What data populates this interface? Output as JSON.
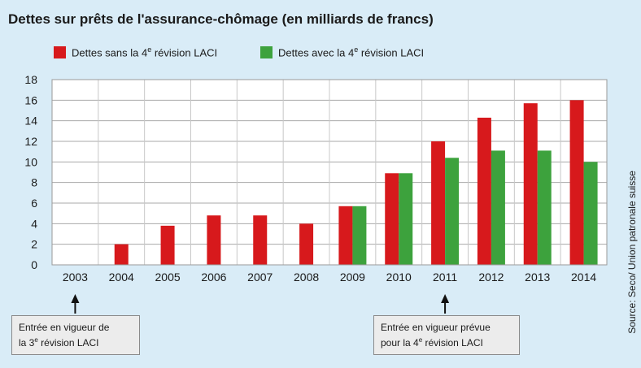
{
  "chart_data": {
    "type": "bar",
    "title": "Dettes sur prêts de l'assurance-chômage (en milliards de francs)",
    "categories": [
      "2003",
      "2004",
      "2005",
      "2006",
      "2007",
      "2008",
      "2009",
      "2010",
      "2011",
      "2012",
      "2013",
      "2014"
    ],
    "series": [
      {
        "name": "Dettes sans la 4e révision LACI",
        "color": "#d7191c",
        "values": [
          0,
          2.0,
          3.8,
          4.8,
          4.8,
          4.0,
          5.7,
          8.9,
          12.0,
          14.3,
          15.7,
          16.0
        ]
      },
      {
        "name": "Dettes avec la 4e révision LACI",
        "color": "#3da23d",
        "values": [
          null,
          null,
          null,
          null,
          null,
          null,
          5.7,
          8.9,
          10.4,
          11.1,
          11.1,
          10.0
        ]
      }
    ],
    "ylim": [
      0,
      18
    ],
    "yticks": [
      0,
      2,
      4,
      6,
      8,
      10,
      12,
      14,
      16,
      18
    ],
    "grid": true,
    "legend": {
      "item1_prefix": "Dettes sans la 4",
      "item1_suffix": " révision LACI",
      "item2_prefix": "Dettes avec la 4",
      "item2_suffix": " révision LACI",
      "sup": "e"
    },
    "annotations": [
      {
        "line1": "Entrée en vigueur de",
        "line2_prefix": "la 3",
        "line2_sup": "e",
        "line2_suffix": " révision LACI",
        "year": "2003"
      },
      {
        "line1": "Entrée en vigueur prévue",
        "line2_prefix": "pour la 4",
        "line2_sup": "e",
        "line2_suffix": " révision LACI",
        "year": "2011"
      }
    ],
    "source": "Source: Seco/ Union patronale suisse"
  }
}
